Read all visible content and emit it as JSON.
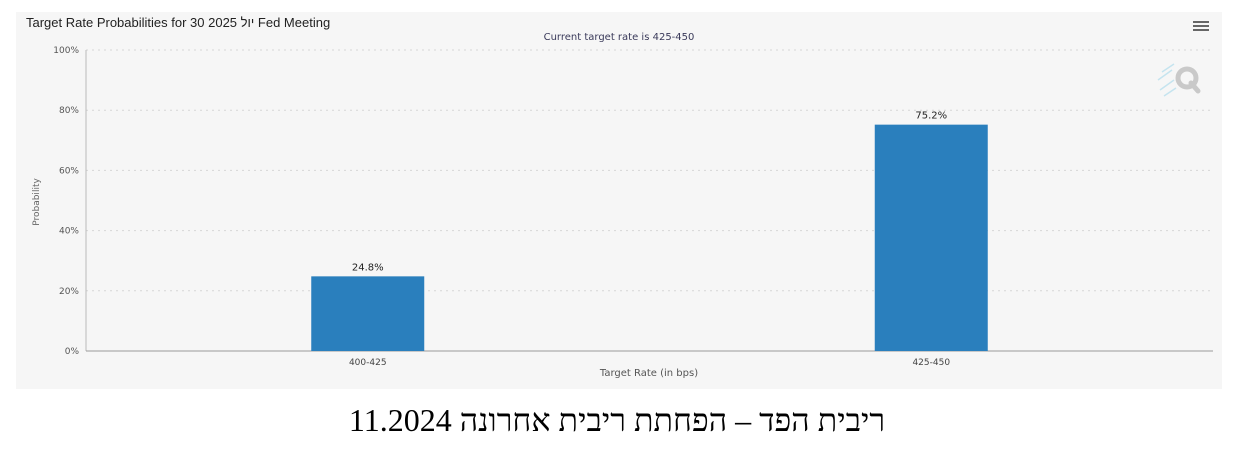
{
  "chart_data": {
    "type": "bar",
    "title": "Target Rate Probabilities for 30 יול 2025 Fed Meeting",
    "subtitle": "Current target rate is 425-450",
    "xlabel": "Target Rate (in bps)",
    "ylabel": "Probability",
    "categories": [
      "400-425",
      "425-450"
    ],
    "values": [
      24.8,
      75.2
    ],
    "data_labels": [
      "24.8%",
      "75.2%"
    ],
    "ylim": [
      0,
      100
    ],
    "yticks": [
      0,
      20,
      40,
      60,
      80,
      100
    ],
    "ytick_labels": [
      "0%",
      "20%",
      "40%",
      "60%",
      "80%",
      "100%"
    ],
    "grid": true,
    "bar_color": "#2a7fbd"
  },
  "menu": {
    "icon": "hamburger-menu-icon"
  },
  "watermark": {
    "icon": "q-logo-icon"
  },
  "caption": "ריבית הפד – הפחתת ריבית אחרונה 11.2024"
}
